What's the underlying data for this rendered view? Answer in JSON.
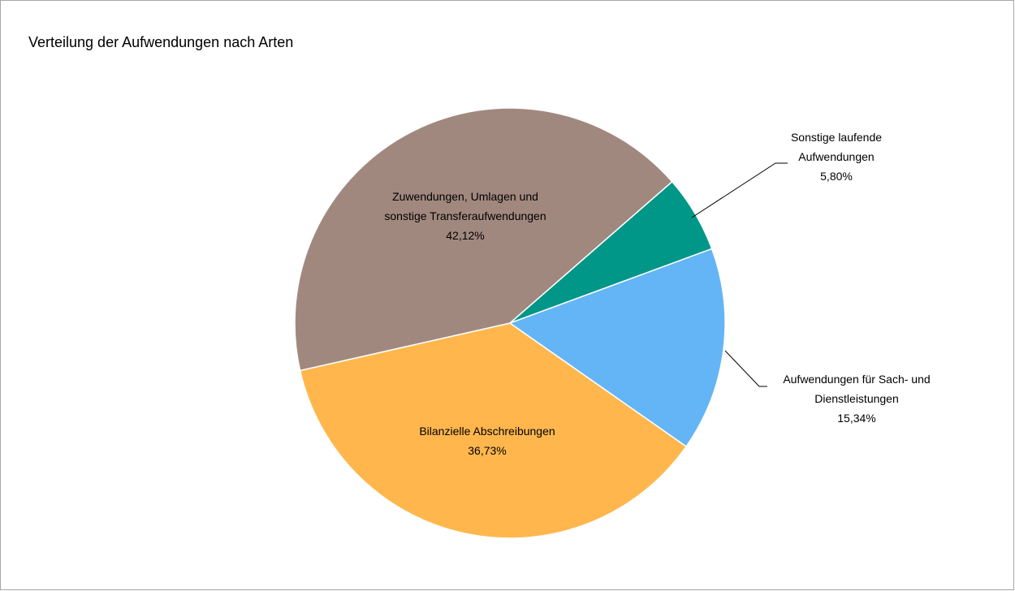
{
  "chart_data": {
    "type": "pie",
    "title": "Verteilung der Aufwendungen nach Arten",
    "categories": [
      "Sonstige laufende Aufwendungen",
      "Aufwendungen für Sach- und Dienstleistungen",
      "Bilanzielle Abschreibungen",
      "Zuwendungen, Umlagen und sonstige Transferaufwendungen"
    ],
    "values": [
      5.8,
      15.34,
      36.73,
      42.12
    ],
    "value_labels": [
      "5,80%",
      "15,34%",
      "36,73%",
      "42,12%"
    ],
    "colors": [
      "#009688",
      "#64b5f6",
      "#ffb74d",
      "#a1887f"
    ]
  }
}
